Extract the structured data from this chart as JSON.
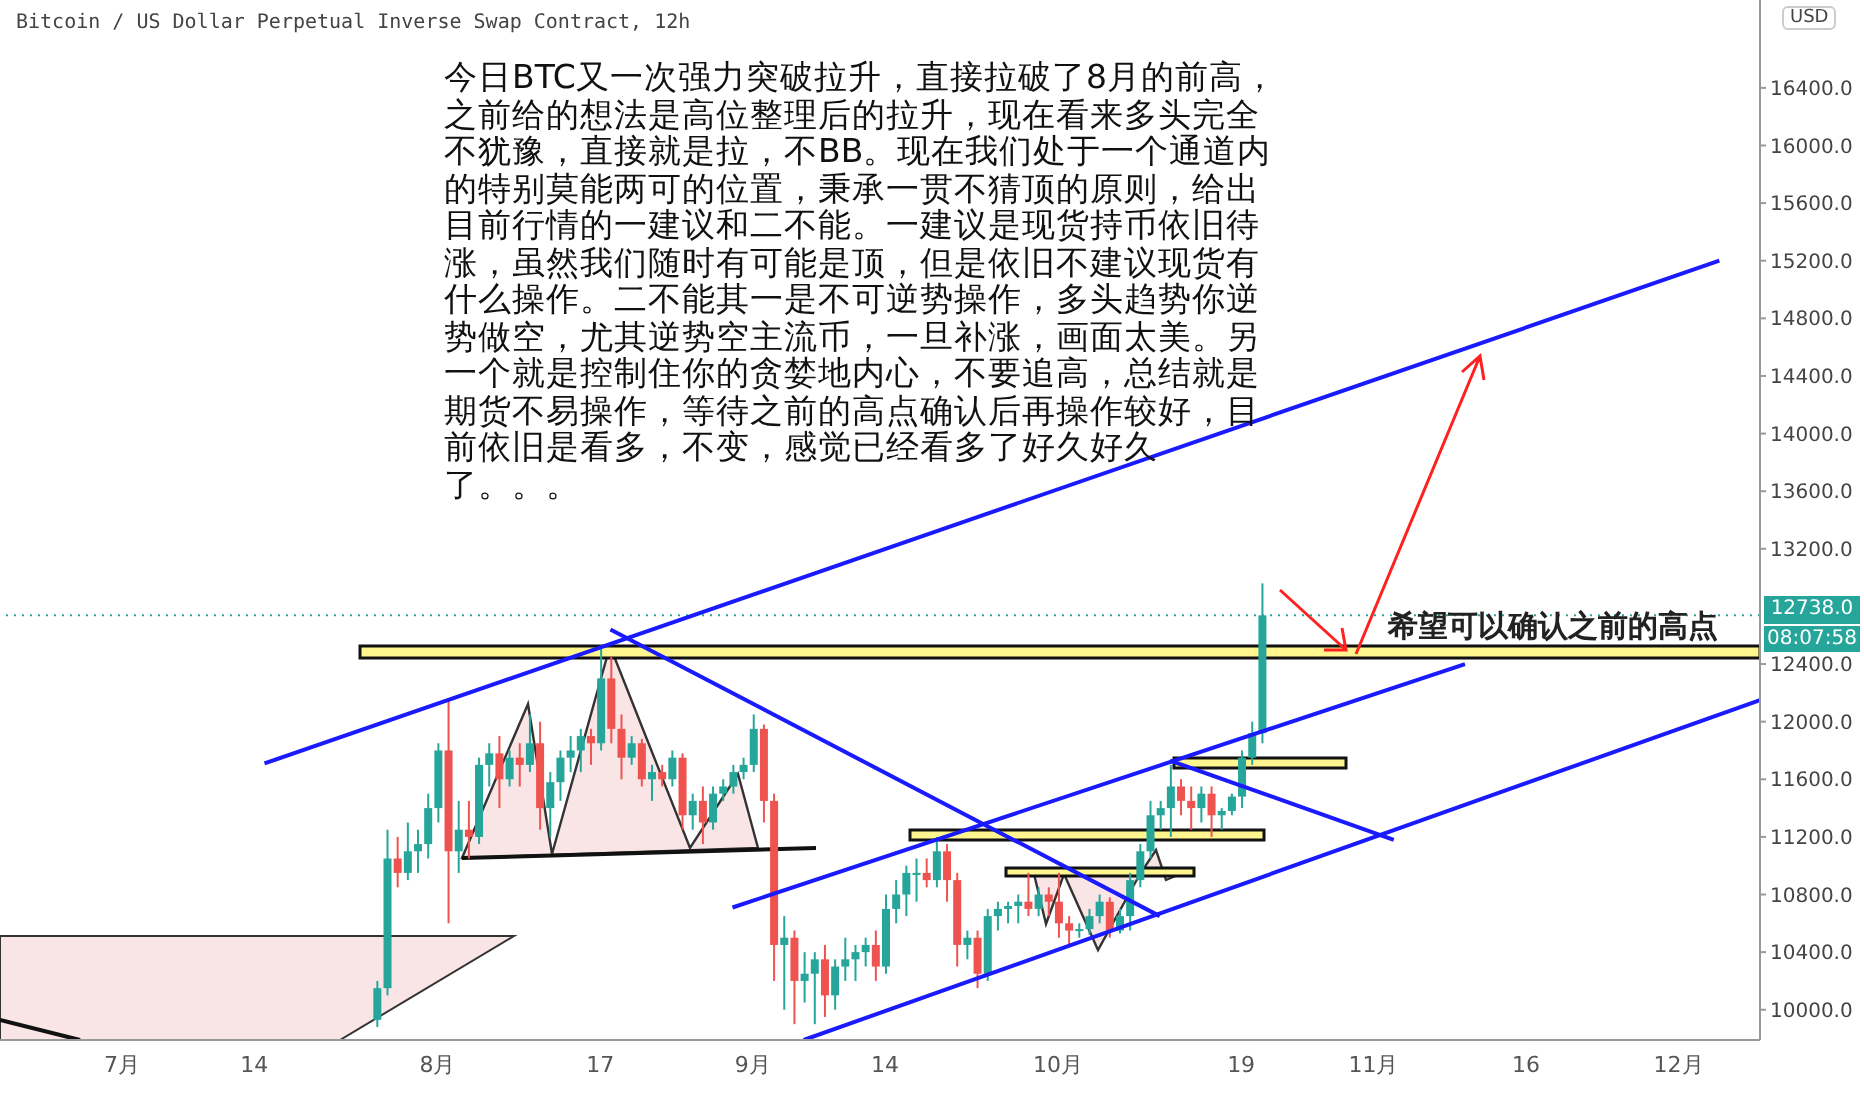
{
  "chart_data": {
    "type": "candlestick",
    "title": "Bitcoin / US Dollar Perpetual Inverse Swap Contract, 12h",
    "annotations": [
      "今日BTC又一次强力突破拉升，直接拉破了8月的前高，之前给的想法是高位整理后的拉升，现在看来多头完全不犹豫，直接就是拉，不BB。现在我们处于一个通道内的特别莫能两可的位置，秉承一贯不猜顶的原则，给出目前行情的一建议和二不能。一建议是现货持币依旧待涨，虽然我们随时有可能是顶，但是依旧不建议现货有什么操作。二不能其一是不可逆势操作，多头趋势你逆势做空，尤其逆势空主流币，一旦补涨，画面太美。另一个就是控制住你的贪婪地内心，不要追高，总结就是期货不易操作，等待之前的高点确认后再操作较好，目前依旧是看多，不变，感觉已经看多了好久好久了。。。",
      "希望可以确认之前的高点",
      "08:07:58",
      "USD"
    ],
    "colors": [
      "#26a69a",
      "#26a69a",
      "#ef5350",
      "#26a69a",
      "#26a69a",
      "#26a69a",
      "#26a69a",
      "#ef5350",
      "#26a69a",
      "#ef5350",
      "#26a69a",
      "#26a69a",
      "#ef5350",
      "#26a69a",
      "#ef5350",
      "#26a69a",
      "#ef5350",
      "#26a69a",
      "#26a69a",
      "#26a69a",
      "#26a69a",
      "#ef5350",
      "#26a69a",
      "#ef5350",
      "#ef5350",
      "#26a69a",
      "#ef5350",
      "#26a69a",
      "#ef5350",
      "#26a69a",
      "#ef5350",
      "#26a69a",
      "#ef5350",
      "#26a69a",
      "#26a69a",
      "#26a69a",
      "#26a69a",
      "#26a69a",
      "#ef5350",
      "#ef5350",
      "#26a69a",
      "#ef5350",
      "#26a69a",
      "#26a69a",
      "#ef5350",
      "#26a69a",
      "#26a69a",
      "#26a69a",
      "#26a69a",
      "#ef5350",
      "#26a69a",
      "#26a69a",
      "#26a69a",
      "#26a69a",
      "#ef5350",
      "#26a69a",
      "#ef5350",
      "#ef5350",
      "#26a69a",
      "#ef5350",
      "#26a69a",
      "#26a69a",
      "#26a69a",
      "#26a69a",
      "#ef5350",
      "#26a69a",
      "#ef5350",
      "#ef5350",
      "#ef5350",
      "#26a69a",
      "#26a69a",
      "#26a69a",
      "#ef5350",
      "#26a69a",
      "#26a69a",
      "#26a69a",
      "#26a69a",
      "#26a69a",
      "#26a69a",
      "#ef5350",
      "#ef5350",
      "#26a69a",
      "#ef5350",
      "#26a69a",
      "#26a69a",
      "#26a69a",
      "#26a69a",
      "#26a69a"
    ],
    "xlim": [
      "--06-19",
      "--12-09"
    ],
    "xticks": [
      {
        "value": "--07-01",
        "label": "7月"
      },
      {
        "value": "--07-14",
        "label": "14"
      },
      {
        "value": "--08-01",
        "label": "8月"
      },
      {
        "value": "--08-17",
        "label": "17"
      },
      {
        "value": "--09-01",
        "label": "9月"
      },
      {
        "value": "--09-14",
        "label": "14"
      },
      {
        "value": "--10-01",
        "label": "10月"
      },
      {
        "value": "--10-19",
        "label": "19"
      },
      {
        "value": "--11-01",
        "label": "11月"
      },
      {
        "value": "--11-16",
        "label": "16"
      },
      {
        "value": "--12-01",
        "label": "12月"
      }
    ],
    "ylim": [
      9790,
      17010
    ],
    "yticks": [
      {
        "value": 10000,
        "label": "10000.0"
      },
      {
        "value": 10400,
        "label": "10400.0"
      },
      {
        "value": 10800,
        "label": "10800.0"
      },
      {
        "value": 11200,
        "label": "11200.0"
      },
      {
        "value": 11600,
        "label": "11600.0"
      },
      {
        "value": 12000,
        "label": "12000.0"
      },
      {
        "value": 12400,
        "label": "12400.0"
      },
      {
        "value": 13200,
        "label": "13200.0"
      },
      {
        "value": 13600,
        "label": "13600.0"
      },
      {
        "value": 14000,
        "label": "14000.0"
      },
      {
        "value": 14400,
        "label": "14400.0"
      },
      {
        "value": 14800,
        "label": "14800.0"
      },
      {
        "value": 15200,
        "label": "15200.0"
      },
      {
        "value": 15600,
        "label": "15600.0"
      },
      {
        "value": 16000,
        "label": "16000.0"
      },
      {
        "value": 16400,
        "label": "16400.0"
      }
    ],
    "series": [
      {
        "type": "line",
        "color": "#1a1aff",
        "x": [
          "--07-15",
          "--12-05"
        ],
        "values": [
          11710,
          15200
        ]
      },
      {
        "type": "line",
        "color": "#1a1aff",
        "x": [
          "--08-30",
          "--11-10"
        ],
        "values": [
          10710,
          12400
        ]
      },
      {
        "type": "line",
        "color": "#1a1aff",
        "x": [
          "--09-06",
          "--12-09"
        ],
        "values": [
          9790,
          12150
        ]
      },
      {
        "type": "line",
        "color": "#1a1aff",
        "x": [
          "--08-18",
          "--10-11"
        ],
        "values": [
          12640,
          10650
        ]
      },
      {
        "type": "line",
        "color": "#1a1aff",
        "x": [
          "--10-12",
          "--11-03"
        ],
        "values": [
          11730,
          11180
        ]
      }
    ],
    "ref_lines": [
      {
        "axis": "y",
        "value": 12738,
        "label": "12738.0",
        "color": "#26a69a",
        "line_style": "dotted"
      }
    ],
    "x": [
      "--07-26",
      "--07-27",
      "--07-28",
      "--07-29",
      "--07-30",
      "--07-31",
      "--08-01",
      "--08-02",
      "--08-03",
      "--08-04",
      "--08-05",
      "--08-06",
      "--08-07",
      "--08-08",
      "--08-09",
      "--08-10",
      "--08-11",
      "--08-12",
      "--08-13",
      "--08-14",
      "--08-15",
      "--08-16",
      "--08-17",
      "--08-18",
      "--08-19",
      "--08-20",
      "--08-21",
      "--08-22",
      "--08-23",
      "--08-24",
      "--08-25",
      "--08-26",
      "--08-27",
      "--08-28",
      "--08-29",
      "--08-30",
      "--08-31",
      "--09-01",
      "--09-02",
      "--09-03",
      "--09-04",
      "--09-05",
      "--09-06",
      "--09-07",
      "--09-08",
      "--09-09",
      "--09-10",
      "--09-11",
      "--09-12",
      "--09-13",
      "--09-14",
      "--09-15",
      "--09-16",
      "--09-17",
      "--09-18",
      "--09-19",
      "--09-20",
      "--09-21",
      "--09-22",
      "--09-23",
      "--09-24",
      "--09-25",
      "--09-26",
      "--09-27",
      "--09-28",
      "--09-29",
      "--09-30",
      "--10-01",
      "--10-02",
      "--10-03",
      "--10-04",
      "--10-05",
      "--10-06",
      "--10-07",
      "--10-08",
      "--10-09",
      "--10-10",
      "--10-11",
      "--10-12",
      "--10-13",
      "--10-14",
      "--10-15",
      "--10-16",
      "--10-17",
      "--10-18",
      "--10-19",
      "--10-20",
      "--10-21"
    ],
    "ohlc": [
      [
        9930,
        10200,
        9880,
        10150
      ],
      [
        10150,
        11250,
        10100,
        11050
      ],
      [
        11050,
        11200,
        10850,
        10950
      ],
      [
        10950,
        11300,
        10900,
        11100
      ],
      [
        11100,
        11250,
        10950,
        11150
      ],
      [
        11150,
        11500,
        11050,
        11400
      ],
      [
        11400,
        11850,
        11300,
        11800
      ],
      [
        11800,
        12150,
        10600,
        11100
      ],
      [
        11100,
        11450,
        10950,
        11250
      ],
      [
        11250,
        11450,
        11050,
        11200
      ],
      [
        11200,
        11750,
        11150,
        11700
      ],
      [
        11700,
        11850,
        11550,
        11780
      ],
      [
        11780,
        11900,
        11400,
        11600
      ],
      [
        11600,
        11800,
        11550,
        11750
      ],
      [
        11750,
        11850,
        11550,
        11700
      ],
      [
        11700,
        12050,
        11650,
        11850
      ],
      [
        11850,
        12000,
        11250,
        11400
      ],
      [
        11400,
        11650,
        11200,
        11580
      ],
      [
        11580,
        11800,
        11450,
        11750
      ],
      [
        11750,
        11900,
        11650,
        11800
      ],
      [
        11800,
        11950,
        11650,
        11900
      ],
      [
        11900,
        11950,
        11700,
        11850
      ],
      [
        11850,
        12530,
        11800,
        12300
      ],
      [
        12300,
        12450,
        11850,
        11950
      ],
      [
        11950,
        12050,
        11600,
        11750
      ],
      [
        11750,
        11900,
        11700,
        11850
      ],
      [
        11850,
        11880,
        11550,
        11600
      ],
      [
        11600,
        11700,
        11450,
        11650
      ],
      [
        11650,
        11700,
        11550,
        11600
      ],
      [
        11600,
        11800,
        11550,
        11750
      ],
      [
        11750,
        11780,
        11250,
        11350
      ],
      [
        11350,
        11500,
        11250,
        11450
      ],
      [
        11450,
        11550,
        11150,
        11300
      ],
      [
        11300,
        11550,
        11250,
        11500
      ],
      [
        11500,
        11600,
        11450,
        11550
      ],
      [
        11550,
        11700,
        11500,
        11650
      ],
      [
        11650,
        11750,
        11600,
        11700
      ],
      [
        11700,
        12050,
        11650,
        11950
      ],
      [
        11950,
        11980,
        11300,
        11450
      ],
      [
        11450,
        11500,
        10200,
        10450
      ],
      [
        10450,
        10650,
        10000,
        10500
      ],
      [
        10500,
        10550,
        9900,
        10200
      ],
      [
        10200,
        10400,
        10050,
        10250
      ],
      [
        10250,
        10400,
        9900,
        10350
      ],
      [
        10350,
        10450,
        9950,
        10100
      ],
      [
        10100,
        10350,
        10000,
        10300
      ],
      [
        10300,
        10500,
        10200,
        10350
      ],
      [
        10350,
        10450,
        10200,
        10400
      ],
      [
        10400,
        10500,
        10300,
        10450
      ],
      [
        10450,
        10550,
        10200,
        10300
      ],
      [
        10300,
        10800,
        10250,
        10700
      ],
      [
        10700,
        10900,
        10600,
        10800
      ],
      [
        10800,
        11000,
        10650,
        10950
      ],
      [
        10950,
        11050,
        10750,
        10950
      ],
      [
        10950,
        11050,
        10850,
        10900
      ],
      [
        10900,
        11200,
        10850,
        11100
      ],
      [
        11100,
        11150,
        10750,
        10900
      ],
      [
        10900,
        10950,
        10300,
        10450
      ],
      [
        10450,
        10550,
        10350,
        10500
      ],
      [
        10500,
        10550,
        10150,
        10250
      ],
      [
        10250,
        10700,
        10200,
        10650
      ],
      [
        10650,
        10750,
        10550,
        10700
      ],
      [
        10700,
        10750,
        10600,
        10720
      ],
      [
        10720,
        10800,
        10600,
        10750
      ],
      [
        10750,
        10950,
        10650,
        10700
      ],
      [
        10700,
        10850,
        10650,
        10800
      ],
      [
        10800,
        10850,
        10650,
        10750
      ],
      [
        10750,
        10950,
        10500,
        10600
      ],
      [
        10600,
        10650,
        10450,
        10550
      ],
      [
        10550,
        10600,
        10500,
        10560
      ],
      [
        10560,
        10700,
        10520,
        10650
      ],
      [
        10650,
        10800,
        10600,
        10750
      ],
      [
        10750,
        10780,
        10500,
        10550
      ],
      [
        10550,
        10700,
        10530,
        10650
      ],
      [
        10650,
        10950,
        10550,
        10900
      ],
      [
        10900,
        11150,
        10850,
        11100
      ],
      [
        11100,
        11450,
        11050,
        11350
      ],
      [
        11350,
        11450,
        11250,
        11400
      ],
      [
        11400,
        11700,
        11200,
        11550
      ],
      [
        11550,
        11600,
        11350,
        11450
      ],
      [
        11450,
        11550,
        11250,
        11400
      ],
      [
        11400,
        11550,
        11300,
        11500
      ],
      [
        11500,
        11550,
        11200,
        11350
      ],
      [
        11350,
        11400,
        11250,
        11380
      ],
      [
        11380,
        11500,
        11350,
        11480
      ],
      [
        11480,
        11800,
        11400,
        11750
      ],
      [
        11750,
        12000,
        11700,
        11920
      ],
      [
        11920,
        12960,
        11850,
        12738
      ]
    ]
  }
}
